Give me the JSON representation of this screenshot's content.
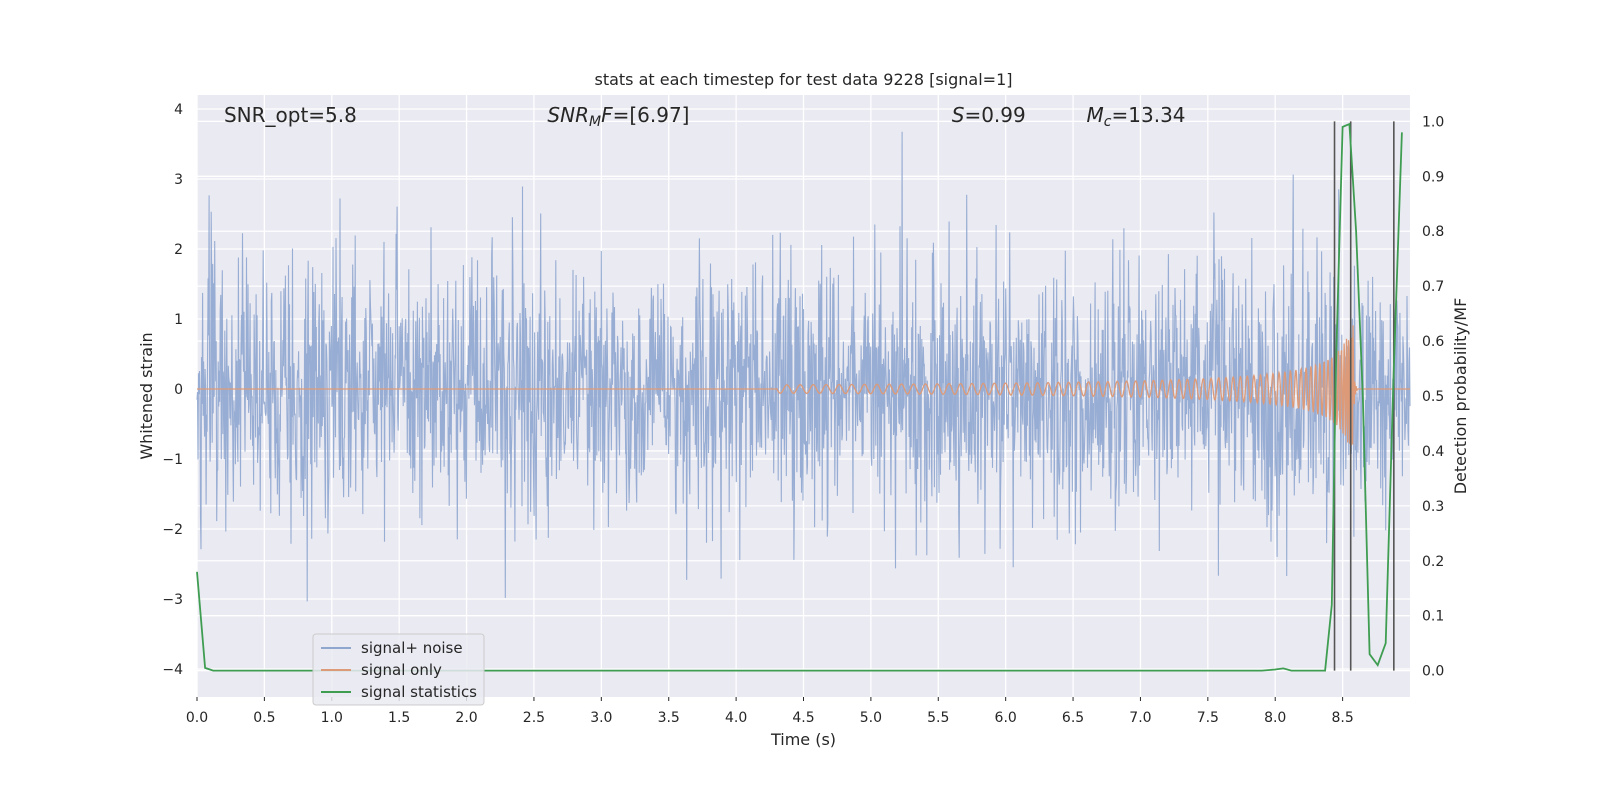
{
  "chart_data": {
    "type": "line",
    "title": "stats at each timestep for test data 9228 [signal=1]",
    "xlabel": "Time (s)",
    "ylabel_left": "Whitened strain",
    "ylabel_right": "Detection probability/MF",
    "xlim": [
      0.0,
      9.0
    ],
    "ylim_left": [
      -4.4,
      4.2
    ],
    "ylim_right": [
      -0.048,
      1.048
    ],
    "x_ticks": [
      "0.0",
      "0.5",
      "1.0",
      "1.5",
      "2.0",
      "2.5",
      "3.0",
      "3.5",
      "4.0",
      "4.5",
      "5.0",
      "5.5",
      "6.0",
      "6.5",
      "7.0",
      "7.5",
      "8.0",
      "8.5"
    ],
    "y_ticks_left": [
      "−4",
      "−3",
      "−2",
      "−1",
      "0",
      "1",
      "2",
      "3",
      "4"
    ],
    "y_ticks_right": [
      "0.0",
      "0.1",
      "0.2",
      "0.3",
      "0.4",
      "0.5",
      "0.6",
      "0.7",
      "0.8",
      "0.9",
      "1.0"
    ],
    "grid": true,
    "legend_position": "lower-left",
    "annotations": [
      {
        "text": "SNR_opt=5.8",
        "x": 0.2
      },
      {
        "text": "SNRMF=[6.97]",
        "x": 2.6
      },
      {
        "text": "S=0.99",
        "x": 5.6
      },
      {
        "text": "Mc=13.34",
        "x": 6.6
      }
    ],
    "series": [
      {
        "name": "signal+ noise",
        "color": "#8fa6cf",
        "description": "whitened noisy strain, amplitude mostly within ±2.5"
      },
      {
        "name": "signal only",
        "color": "#dd9a78",
        "description": "chirp waveform growing near merger ~8.55 s"
      },
      {
        "name": "signal statistics",
        "color": "#3f9d52",
        "x": [
          0.0,
          0.06,
          0.12,
          0.5,
          1.0,
          2.0,
          3.0,
          4.0,
          5.0,
          6.0,
          7.0,
          7.9,
          8.0,
          8.06,
          8.12,
          8.18,
          8.3,
          8.37,
          8.42,
          8.45,
          8.5,
          8.55,
          8.6,
          8.65,
          8.7,
          8.76,
          8.82,
          8.88,
          8.94
        ],
        "y": [
          0.18,
          0.005,
          0.0,
          0.0,
          0.0,
          0.0,
          0.0,
          0.0,
          0.0,
          0.0,
          0.0,
          0.0,
          0.002,
          0.004,
          0.0,
          0.0,
          0.0,
          0.0,
          0.12,
          0.55,
          0.99,
          0.995,
          0.8,
          0.5,
          0.03,
          0.01,
          0.05,
          0.55,
          0.98
        ]
      }
    ],
    "vertical_lines_x": [
      8.44,
      8.56,
      8.88
    ]
  },
  "legend": {
    "items": [
      {
        "label": "signal+ noise",
        "color": "#8fa6cf"
      },
      {
        "label": "signal only",
        "color": "#dd9a78"
      },
      {
        "label": "signal statistics",
        "color": "#3f9d52"
      }
    ]
  },
  "colors": {
    "plot_background": "#eaeaf2",
    "grid": "#ffffff",
    "vline": "#555555"
  }
}
